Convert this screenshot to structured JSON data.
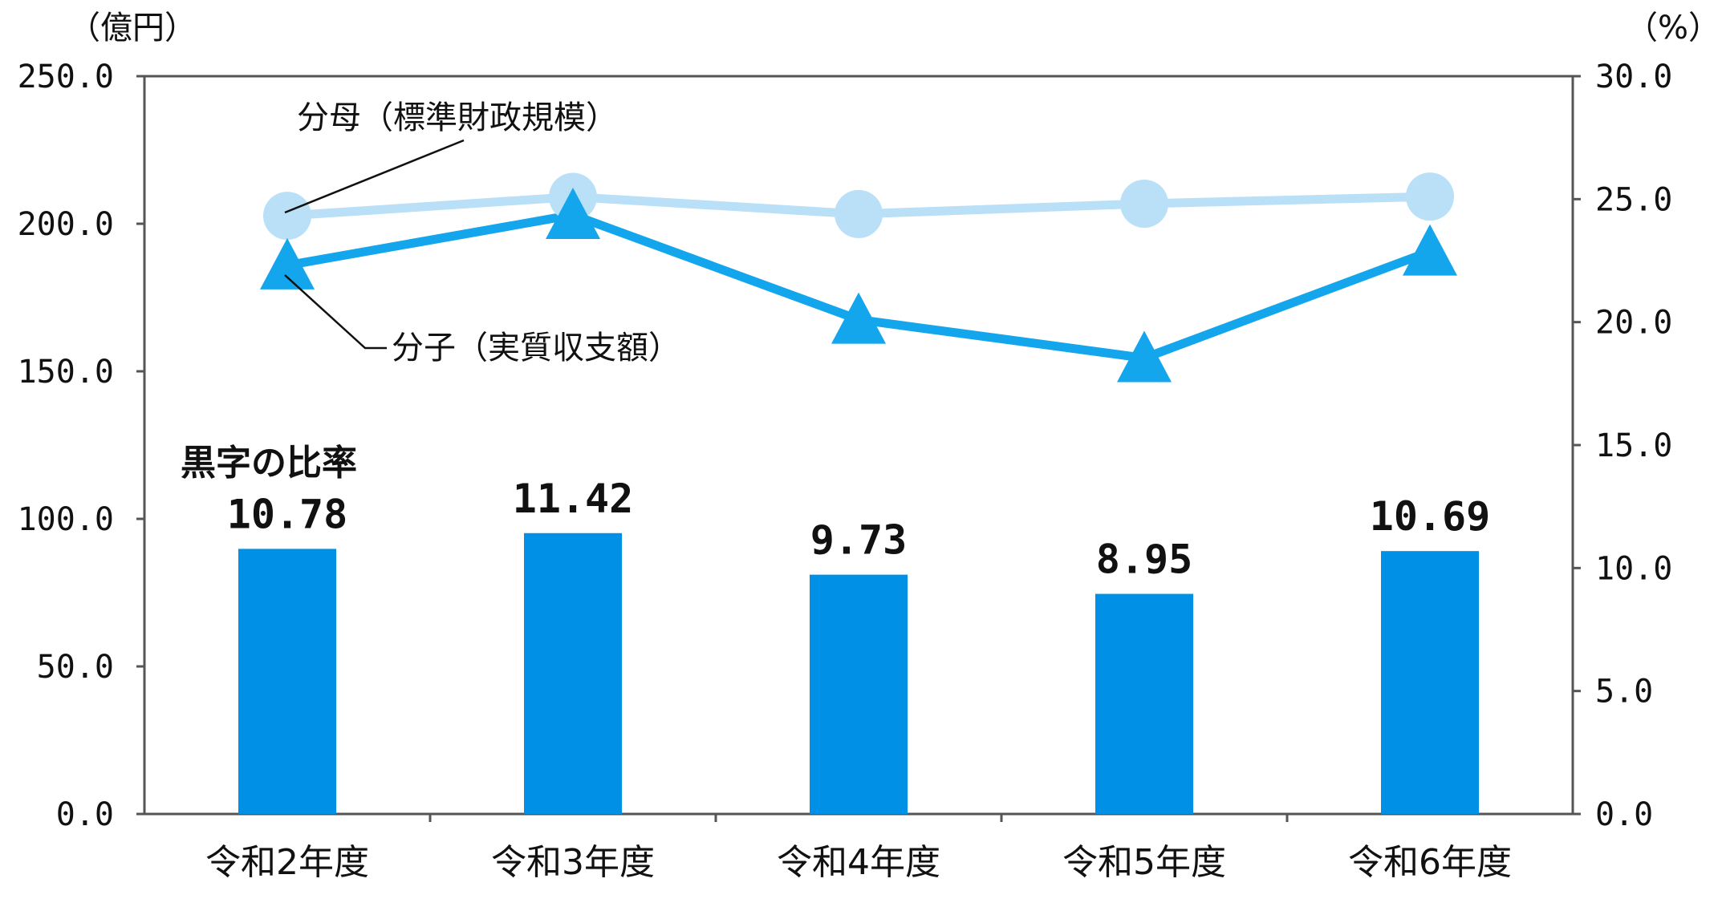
{
  "chart_data": {
    "type": "bar",
    "categories": [
      "令和2年度",
      "令和3年度",
      "令和4年度",
      "令和5年度",
      "令和6年度"
    ],
    "left_axis": {
      "unit": "（億円）",
      "ylim": [
        0,
        250
      ],
      "ticks": [
        "0.0",
        "50.0",
        "100.0",
        "150.0",
        "200.0",
        "250.0"
      ]
    },
    "right_axis": {
      "unit": "（%）",
      "ylim": [
        0,
        30
      ],
      "ticks": [
        "0.0",
        "5.0",
        "10.0",
        "15.0",
        "20.0",
        "25.0",
        "30.0"
      ]
    },
    "bars": {
      "name": "黒字の比率",
      "axis": "right",
      "values": [
        10.78,
        11.42,
        9.73,
        8.95,
        10.69
      ],
      "labels": [
        "10.78",
        "11.42",
        "9.73",
        "8.95",
        "10.69"
      ]
    },
    "series": [
      {
        "name": "分母（標準財政規模）",
        "type": "line",
        "marker": "circle",
        "axis": "left",
        "values": [
          202.7,
          209.1,
          203.3,
          206.8,
          209.2
        ]
      },
      {
        "name": "分子（実質収支額）",
        "type": "line",
        "marker": "triangle",
        "axis": "left",
        "values": [
          185.9,
          203.0,
          167.5,
          154.5,
          190.6
        ]
      }
    ],
    "grid": false,
    "colors": {
      "bar": "#0090e6",
      "line_numerator": "#14a6ec",
      "line_denominator": "#b9e0f7",
      "axis": "#555555"
    }
  }
}
